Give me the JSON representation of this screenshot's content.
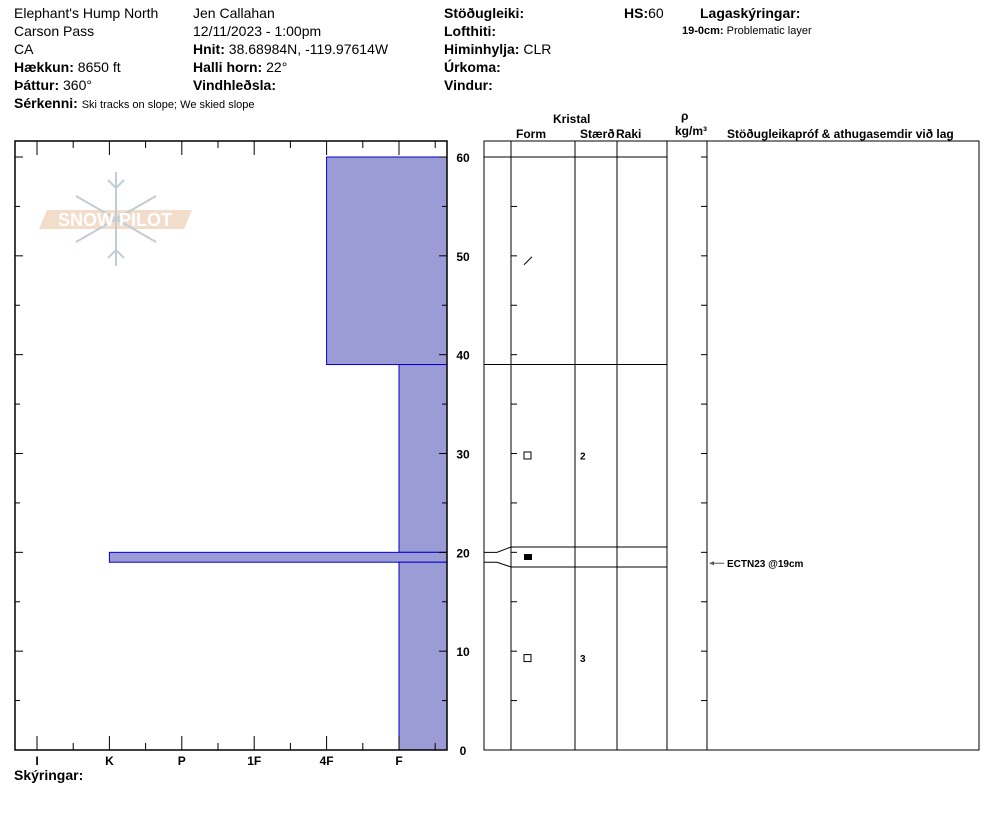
{
  "header": {
    "location": "Elephant's Hump North",
    "area": "Carson Pass",
    "state": "CA",
    "elevation_label": "Hækkun:",
    "elevation": "8650 ft",
    "aspect_label": "Þáttur:",
    "aspect": "360°",
    "observer": "Jen Callahan",
    "datetime": "12/11/2023 - 1:00pm",
    "coords_label": "Hnit:",
    "coords": "38.68984N, -119.97614W",
    "slope_label": "Halli horn:",
    "slope": "22°",
    "wind_loading_label": "Vindhleðsla:",
    "wind_loading": "",
    "stability_label": "Stöðugleiki:",
    "stability": "",
    "air_temp_label": "Lofthiti:",
    "air_temp": "",
    "sky_label": "Himinhylja:",
    "sky": "CLR",
    "precip_label": "Úrkoma:",
    "precip": "",
    "wind_label": "Vindur:",
    "wind": "",
    "hs_label": "HS:",
    "hs": "60",
    "layer_notes_label": "Lagaskýringar:",
    "layer_note_range": "19-0cm:",
    "layer_note_text": "Problematic layer",
    "features_label": "Sérkenni:",
    "features": "Ski tracks on slope; We skied slope"
  },
  "logo": {
    "text": "SNOW PILOT"
  },
  "table_headers": {
    "crystal": "Kristal",
    "form": "Form",
    "size": "Stærð",
    "moisture": "Raki",
    "density_symbol": "ρ",
    "density_unit": "kg/m³",
    "tests": "Stöðugleikapróf & athugasemdir við lag"
  },
  "footer": {
    "comments_label": "Skýringar:"
  },
  "colors": {
    "hardness_fill": "#9b9bd6",
    "hardness_edge": "#0000cc"
  },
  "chart_data": {
    "type": "bar",
    "hardness_categories": [
      "I",
      "K",
      "P",
      "1F",
      "4F",
      "F"
    ],
    "depth_ticks": [
      "0",
      "10",
      "20",
      "30",
      "40",
      "50",
      "60"
    ],
    "ylim": [
      0,
      60
    ],
    "layers": [
      {
        "top": 60,
        "bottom": 39,
        "hardness": "4F",
        "form": "slash",
        "size": ""
      },
      {
        "top": 39,
        "bottom": 20,
        "hardness": "F",
        "form": "open-square",
        "size": "2"
      },
      {
        "top": 20,
        "bottom": 19,
        "hardness": "K",
        "form": "filled-rect",
        "size": ""
      },
      {
        "top": 19,
        "bottom": 0,
        "hardness": "F",
        "form": "open-square",
        "size": "3"
      }
    ],
    "tests": [
      {
        "depth": 19,
        "label": "ECTN23 @19cm"
      }
    ]
  }
}
